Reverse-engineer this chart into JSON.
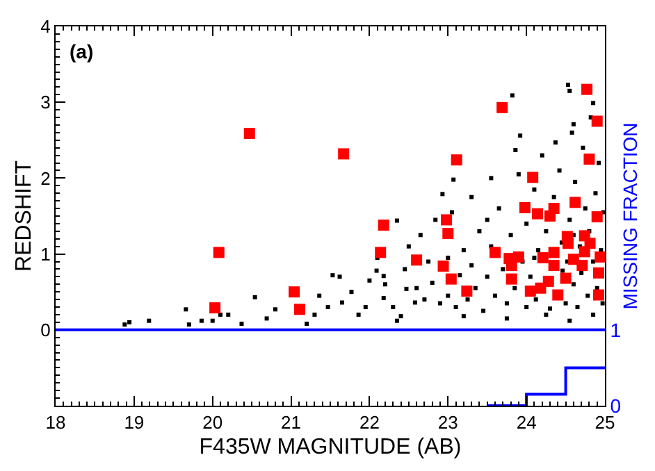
{
  "chart_data": {
    "type": "scatter",
    "xlabel": "F435W MAGNITUDE (AB)",
    "ylabel": "REDSHIFT",
    "y2label": "MISSING FRACTION",
    "annotations": [
      "(a)"
    ],
    "xlim": [
      18,
      25
    ],
    "xticks": [
      18,
      19,
      20,
      21,
      22,
      23,
      24,
      25
    ],
    "ylim": [
      -1,
      4
    ],
    "yticks": [
      0,
      1,
      2,
      3,
      4
    ],
    "y2lim": [
      0,
      5
    ],
    "y2ticks": [
      0,
      1
    ],
    "ref_lines": [
      {
        "axis": "y",
        "value": 0,
        "color": "#0000ff"
      }
    ],
    "series": [
      {
        "color": "#000000",
        "marker": "square",
        "x": [
          18.88,
          18.94,
          19.19,
          19.66,
          19.7,
          19.86,
          20.0,
          20.1,
          20.2,
          20.37,
          20.54,
          20.69,
          20.8,
          21.2,
          21.3,
          21.36,
          21.53,
          21.47,
          21.65,
          21.77,
          21.86,
          22.0,
          22.09,
          22.18,
          22.3,
          22.35,
          22.47,
          22.58,
          24.53,
          24.55,
          23.82,
          24.85,
          24.6,
          23.92,
          24.37,
          23.86,
          23.07,
          22.93,
          22.35,
          22.84,
          22.18,
          21.62,
          22.6,
          22.7,
          22.8,
          22.9,
          22.75,
          23.0,
          23.1,
          23.15,
          23.2,
          23.25,
          23.3,
          23.35,
          23.4,
          23.45,
          23.5,
          23.55,
          23.6,
          23.65,
          23.7,
          23.75,
          23.8,
          23.85,
          23.9,
          23.95,
          24.0,
          24.0,
          24.05,
          24.1,
          24.12,
          24.15,
          24.2,
          24.25,
          24.3,
          24.35,
          24.42,
          24.45,
          24.5,
          24.52,
          24.55,
          24.58,
          24.6,
          24.62,
          24.65,
          24.68,
          24.7,
          24.72,
          24.75,
          24.78,
          24.8,
          24.82,
          24.85,
          24.88,
          24.9,
          24.92,
          24.95,
          24.97,
          24.98,
          23.05,
          23.3,
          23.55,
          22.5,
          22.45,
          22.65,
          23.0,
          23.5,
          24.1,
          24.46,
          24.6,
          24.85,
          24.25,
          23.75,
          23.2,
          24.55,
          22.2,
          22.4,
          21.95,
          22.1
        ],
        "values": [
          0.07,
          0.1,
          0.12,
          0.27,
          0.07,
          0.12,
          0.12,
          0.2,
          0.2,
          0.08,
          0.43,
          0.15,
          0.27,
          0.08,
          0.2,
          0.45,
          0.72,
          0.3,
          0.36,
          0.5,
          0.2,
          0.65,
          0.78,
          0.42,
          0.3,
          0.12,
          0.54,
          0.36,
          3.23,
          3.15,
          3.09,
          2.99,
          2.71,
          2.56,
          2.47,
          2.37,
          1.98,
          1.79,
          1.44,
          1.45,
          0.71,
          0.7,
          0.55,
          0.4,
          0.62,
          0.35,
          0.9,
          0.45,
          0.3,
          0.72,
          1.05,
          0.4,
          0.85,
          0.55,
          1.3,
          0.25,
          0.7,
          1.1,
          0.45,
          1.6,
          0.8,
          0.35,
          1.25,
          0.55,
          2.05,
          0.9,
          0.3,
          1.4,
          0.7,
          1.85,
          0.4,
          1.05,
          2.3,
          1.3,
          0.28,
          1.75,
          2.1,
          1.15,
          0.35,
          0.9,
          1.45,
          2.6,
          0.6,
          1.95,
          0.3,
          1.1,
          0.75,
          2.4,
          1.6,
          0.45,
          1.3,
          2.8,
          0.9,
          1.8,
          0.55,
          2.2,
          1.05,
          0.35,
          1.55,
          1.55,
          1.75,
          2.0,
          1.1,
          0.8,
          1.25,
          0.95,
          1.45,
          0.95,
          0.78,
          1.25,
          0.2,
          0.2,
          0.15,
          0.18,
          0.12,
          0.6,
          0.18,
          0.3,
          0.95
        ]
      },
      {
        "color": "#ff0000",
        "marker": "square",
        "x": [
          20.47,
          20.08,
          21.67,
          22.18,
          22.14,
          22.6,
          22.94,
          23.04,
          22.98,
          23.0,
          23.11,
          23.69,
          24.08,
          23.98,
          24.14,
          24.3,
          24.35,
          24.62,
          24.77,
          24.9,
          24.8,
          24.9,
          24.52,
          24.74,
          24.81,
          24.53,
          23.6,
          23.78,
          23.9,
          23.81,
          24.21,
          24.35,
          24.35,
          24.6,
          24.74,
          24.71,
          24.94,
          24.92,
          20.03,
          21.04,
          21.11,
          23.24,
          23.81,
          24.05,
          24.18,
          24.28,
          24.4,
          24.5,
          24.92
        ],
        "values": [
          2.59,
          1.02,
          2.32,
          1.38,
          1.02,
          0.92,
          0.84,
          0.67,
          1.45,
          1.27,
          2.24,
          2.93,
          2.01,
          1.61,
          1.53,
          1.5,
          1.6,
          1.68,
          3.17,
          2.75,
          2.25,
          1.49,
          1.23,
          1.24,
          1.14,
          1.14,
          1.02,
          0.94,
          0.96,
          0.85,
          0.95,
          1.02,
          0.85,
          0.93,
          1.03,
          0.85,
          0.96,
          0.75,
          0.29,
          0.5,
          0.27,
          0.51,
          0.67,
          0.51,
          0.55,
          0.64,
          0.46,
          0.68,
          0.46
        ]
      },
      {
        "type": "step",
        "axis": "y2",
        "color": "#0000ff",
        "x": [
          23.5,
          24,
          24.5,
          25
        ],
        "values": [
          0,
          0.15,
          0.5,
          0.5
        ]
      }
    ]
  }
}
